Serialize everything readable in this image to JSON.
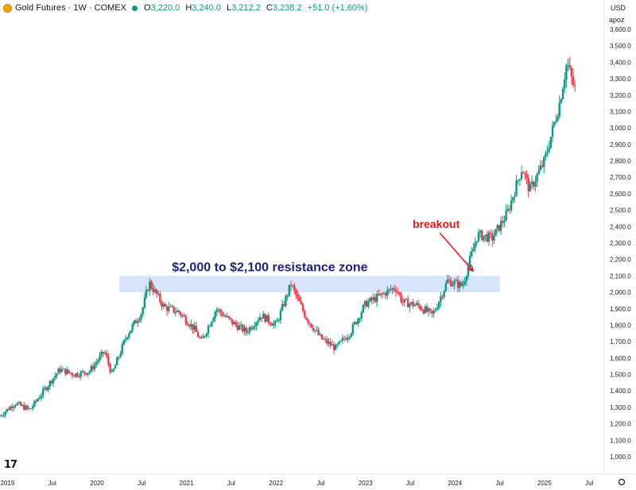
{
  "header": {
    "title": "Gold Futures · 1W · COMEX",
    "ohlc": [
      {
        "key": "O",
        "value": "3,220.0"
      },
      {
        "key": "H",
        "value": "3,240.0"
      },
      {
        "key": "L",
        "value": "3,212.2"
      },
      {
        "key": "C",
        "value": "3,238.2"
      }
    ],
    "change": "+51.0 (+1.60%)",
    "status_color": "#089981",
    "symbol_icon": "gold-coin-icon"
  },
  "price_axis": {
    "currency": "USD",
    "unit": "apoz"
  },
  "logo_text": "17",
  "colors": {
    "up": "#089981",
    "down": "#f23645",
    "zone": "#cfe0fb",
    "annotation_red": "#e8141c",
    "annotation_navy": "#1a237e"
  },
  "chart_data": {
    "type": "candlestick",
    "title": "Gold Futures · 1W · COMEX",
    "ylim": [
      1000,
      3600
    ],
    "y_ticks": [
      1000,
      1100,
      1200,
      1300,
      1400,
      1500,
      1600,
      1700,
      1800,
      1900,
      2000,
      2100,
      2200,
      2300,
      2400,
      2500,
      2600,
      2700,
      2800,
      2900,
      3000,
      3100,
      3200,
      3300,
      3400,
      3500,
      3600
    ],
    "y_tick_labels": [
      "1,000.0",
      "1,100.0",
      "1,200.0",
      "1,300.0",
      "1,400.0",
      "1,500.0",
      "1,600.0",
      "1,700.0",
      "1,800.0",
      "1,900.0",
      "2,000.0",
      "2,100.0",
      "2,200.0",
      "2,300.0",
      "2,400.0",
      "2,500.0",
      "2,600.0",
      "2,700.0",
      "2,800.0",
      "2,900.0",
      "3,000.0",
      "3,100.0",
      "3,200.0",
      "3,300.0",
      "3,400.0",
      "3,500.0",
      "3,600.0"
    ],
    "x_ticks": [
      {
        "date": "2019-01",
        "label": "2019"
      },
      {
        "date": "2019-07",
        "label": "Jul"
      },
      {
        "date": "2020-01",
        "label": "2020"
      },
      {
        "date": "2020-07",
        "label": "Jul"
      },
      {
        "date": "2021-01",
        "label": "2021"
      },
      {
        "date": "2021-07",
        "label": "Jul"
      },
      {
        "date": "2022-01",
        "label": "2022"
      },
      {
        "date": "2022-07",
        "label": "Jul"
      },
      {
        "date": "2023-01",
        "label": "2023"
      },
      {
        "date": "2023-07",
        "label": "Jul"
      },
      {
        "date": "2024-01",
        "label": "2024"
      },
      {
        "date": "2024-07",
        "label": "Jul"
      },
      {
        "date": "2025-01",
        "label": "2025"
      },
      {
        "date": "2025-07",
        "label": "Jul"
      }
    ],
    "xlim": [
      "2018-12",
      "2025-09"
    ],
    "close_path": [
      [
        "2018-12",
        1250
      ],
      [
        "2019-02",
        1325
      ],
      [
        "2019-04",
        1285
      ],
      [
        "2019-06",
        1410
      ],
      [
        "2019-08",
        1530
      ],
      [
        "2019-10",
        1500
      ],
      [
        "2019-12",
        1520
      ],
      [
        "2020-02",
        1640
      ],
      [
        "2020-03",
        1500
      ],
      [
        "2020-05",
        1740
      ],
      [
        "2020-07",
        1880
      ],
      [
        "2020-08",
        2060
      ],
      [
        "2020-10",
        1910
      ],
      [
        "2020-12",
        1880
      ],
      [
        "2021-02",
        1780
      ],
      [
        "2021-03",
        1700
      ],
      [
        "2021-05",
        1900
      ],
      [
        "2021-07",
        1820
      ],
      [
        "2021-09",
        1760
      ],
      [
        "2021-11",
        1860
      ],
      [
        "2022-01",
        1800
      ],
      [
        "2022-03",
        2050
      ],
      [
        "2022-05",
        1850
      ],
      [
        "2022-07",
        1720
      ],
      [
        "2022-09",
        1660
      ],
      [
        "2022-11",
        1760
      ],
      [
        "2023-01",
        1930
      ],
      [
        "2023-05",
        2030
      ],
      [
        "2023-06",
        1940
      ],
      [
        "2023-08",
        1920
      ],
      [
        "2023-10",
        1860
      ],
      [
        "2023-12",
        2070
      ],
      [
        "2024-02",
        2040
      ],
      [
        "2024-04",
        2350
      ],
      [
        "2024-06",
        2330
      ],
      [
        "2024-08",
        2480
      ],
      [
        "2024-10",
        2760
      ],
      [
        "2024-11",
        2620
      ],
      [
        "2025-01",
        2800
      ],
      [
        "2025-03",
        3150
      ],
      [
        "2025-04",
        3400
      ],
      [
        "2025-05",
        3238
      ]
    ],
    "annotations": [
      {
        "type": "zone",
        "label": "$2,000 to $2,100 resistance zone",
        "y_range": [
          2000,
          2100
        ],
        "x_range": [
          "2020-04",
          "2024-07"
        ]
      },
      {
        "type": "arrow",
        "label": "breakout",
        "target": [
          "2024-03",
          2120
        ]
      }
    ]
  }
}
